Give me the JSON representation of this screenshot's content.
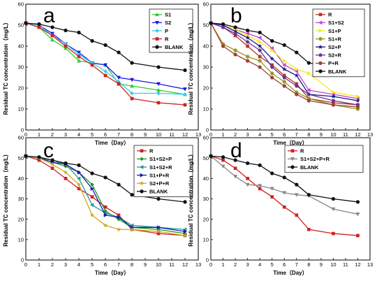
{
  "chart_data": [
    {
      "panel": "a",
      "type": "line",
      "xlabel": "Time（Day）",
      "ylabel": "Residual TC concentration（mg/L）",
      "xlim": [
        0,
        13
      ],
      "ylim": [
        0,
        60
      ],
      "xticks": [
        0,
        1,
        2,
        3,
        4,
        5,
        6,
        7,
        8,
        9,
        10,
        11,
        12,
        13
      ],
      "yticks": [
        0,
        10,
        20,
        30,
        40,
        50,
        60
      ],
      "grid": false,
      "legend_position": "top-right",
      "series": [
        {
          "name": "S1",
          "color": "#33cc33",
          "marker": "triangle-up",
          "x": [
            0,
            1,
            2,
            3,
            4,
            5,
            6,
            7,
            8,
            10,
            12
          ],
          "y": [
            51,
            49,
            43,
            39,
            33,
            32,
            31,
            22,
            21,
            19,
            17
          ]
        },
        {
          "name": "S2",
          "color": "#1a1aee",
          "marker": "triangle-down",
          "x": [
            0,
            1,
            2,
            3,
            4,
            5,
            6,
            7,
            8,
            10,
            12
          ],
          "y": [
            51,
            50,
            46,
            41,
            37,
            32,
            31,
            25,
            24,
            22,
            19.5
          ]
        },
        {
          "name": "P",
          "color": "#33ccee",
          "marker": "diamond",
          "x": [
            0,
            1,
            2,
            3,
            4,
            5,
            6,
            7,
            8,
            10,
            12
          ],
          "y": [
            51,
            50,
            45,
            41,
            36,
            32,
            28,
            23,
            17.5,
            17.5,
            17
          ]
        },
        {
          "name": "R",
          "color": "#cc2222",
          "marker": "square",
          "x": [
            0,
            1,
            2,
            3,
            4,
            5,
            6,
            7,
            8,
            10,
            12
          ],
          "y": [
            51,
            49,
            45,
            40,
            35,
            31,
            26,
            22,
            15,
            13,
            12
          ]
        },
        {
          "name": "BLANK",
          "color": "#111111",
          "marker": "circle",
          "x": [
            0,
            1,
            2,
            3,
            4,
            5,
            6,
            7,
            8,
            10,
            12
          ],
          "y": [
            51,
            50.5,
            49,
            47.5,
            46.5,
            42.5,
            40.5,
            37,
            32,
            30,
            28.5
          ]
        }
      ]
    },
    {
      "panel": "b",
      "type": "line",
      "xlabel": "Time（Day）",
      "ylabel": "Residual TC concentration（mg/L）",
      "xlim": [
        0,
        13
      ],
      "ylim": [
        0,
        60
      ],
      "xticks": [
        0,
        1,
        2,
        3,
        4,
        5,
        6,
        7,
        8,
        9,
        10,
        11,
        12,
        13
      ],
      "yticks": [
        0,
        10,
        20,
        30,
        40,
        50,
        60
      ],
      "grid": false,
      "legend_position": "top-right",
      "series": [
        {
          "name": "R",
          "color": "#bb3322",
          "marker": "square",
          "x": [
            0,
            1,
            2,
            3,
            4,
            5,
            6,
            7,
            8,
            10,
            12
          ],
          "y": [
            51,
            49,
            45,
            40,
            35,
            31,
            26,
            22,
            15,
            13,
            12
          ]
        },
        {
          "name": "S1+S2",
          "color": "#cc44cc",
          "marker": "triangle-left",
          "x": [
            0,
            1,
            2,
            3,
            4,
            5,
            6,
            7,
            8,
            10,
            12
          ],
          "y": [
            51,
            50,
            48,
            46,
            44,
            39,
            31,
            28,
            19,
            17,
            15
          ]
        },
        {
          "name": "S1+P",
          "color": "#eeee22",
          "marker": "triangle-right",
          "x": [
            0,
            1,
            2,
            3,
            4,
            5,
            6,
            7,
            8,
            10,
            12
          ],
          "y": [
            51,
            50,
            48,
            45,
            42,
            38,
            33,
            29,
            27,
            18,
            16
          ]
        },
        {
          "name": "S1+R",
          "color": "#999922",
          "marker": "circle",
          "x": [
            0,
            1,
            2,
            3,
            4,
            5,
            6,
            7,
            8,
            10,
            12
          ],
          "y": [
            51,
            41,
            38,
            35,
            33,
            27,
            23,
            18,
            15,
            12,
            10
          ]
        },
        {
          "name": "S2+P",
          "color": "#1a1a88",
          "marker": "star",
          "x": [
            0,
            1,
            2,
            3,
            4,
            5,
            6,
            7,
            8,
            10,
            12
          ],
          "y": [
            51,
            50,
            47,
            44,
            40,
            34,
            29,
            26,
            17,
            16,
            14
          ]
        },
        {
          "name": "S2+R",
          "color": "#663399",
          "marker": "pentagon",
          "x": [
            0,
            1,
            2,
            3,
            4,
            5,
            6,
            7,
            8,
            10,
            12
          ],
          "y": [
            51,
            49,
            46,
            42,
            38,
            30,
            25,
            21,
            17,
            14,
            12
          ]
        },
        {
          "name": "P+R",
          "color": "#994433",
          "marker": "circle",
          "x": [
            0,
            1,
            2,
            3,
            4,
            5,
            6,
            7,
            8,
            10,
            12
          ],
          "y": [
            51,
            40,
            36,
            33,
            30,
            25,
            21,
            17,
            14,
            12,
            11
          ]
        },
        {
          "name": "BLANK",
          "color": "#111111",
          "marker": "circle",
          "x": [
            0,
            1,
            2,
            3,
            4,
            5,
            6,
            7,
            8,
            10,
            12
          ],
          "y": [
            51,
            50.5,
            49,
            47.5,
            46.5,
            42.5,
            40.5,
            37,
            32,
            30,
            28.5
          ]
        }
      ]
    },
    {
      "panel": "c",
      "type": "line",
      "xlabel": "Time（Day）",
      "ylabel": "Residual TC concentration（mg/L）",
      "xlim": [
        0,
        13
      ],
      "ylim": [
        0,
        60
      ],
      "xticks": [
        0,
        1,
        2,
        3,
        4,
        5,
        6,
        7,
        8,
        9,
        10,
        11,
        12,
        13
      ],
      "yticks": [
        0,
        10,
        20,
        30,
        40,
        50,
        60
      ],
      "grid": false,
      "legend_position": "top-right",
      "series": [
        {
          "name": "R",
          "color": "#cc2222",
          "marker": "square",
          "x": [
            0,
            1,
            2,
            3,
            4,
            5,
            6,
            7,
            8,
            10,
            12
          ],
          "y": [
            51,
            49,
            45,
            40,
            35,
            31,
            26,
            22,
            15,
            13,
            12
          ]
        },
        {
          "name": "S1+S2+P",
          "color": "#229922",
          "marker": "diamond",
          "x": [
            0,
            1,
            2,
            3,
            4,
            5,
            6,
            7,
            8,
            10,
            12
          ],
          "y": [
            51,
            50,
            48,
            46,
            43,
            37,
            24,
            20,
            16,
            15,
            13
          ]
        },
        {
          "name": "S1+S2+R",
          "color": "#229999",
          "marker": "triangle-left",
          "x": [
            0,
            1,
            2,
            3,
            4,
            5,
            6,
            7,
            8,
            10,
            12
          ],
          "y": [
            51,
            50,
            49,
            47,
            40,
            27,
            23,
            21,
            17,
            16,
            15
          ]
        },
        {
          "name": "S1+P+R",
          "color": "#1a1aaa",
          "marker": "triangle-right",
          "x": [
            0,
            1,
            2,
            3,
            4,
            5,
            6,
            7,
            8,
            10,
            12
          ],
          "y": [
            51,
            50,
            48,
            47,
            43,
            35,
            22,
            21,
            16,
            16,
            14
          ]
        },
        {
          "name": "S2+P+R",
          "color": "#ccaa22",
          "marker": "star",
          "x": [
            0,
            1,
            2,
            3,
            4,
            5,
            6,
            7,
            8,
            10,
            12
          ],
          "y": [
            51,
            50,
            47,
            43,
            37,
            22,
            17,
            15,
            15,
            14,
            12
          ]
        },
        {
          "name": "BLANK",
          "color": "#111111",
          "marker": "circle",
          "x": [
            0,
            1,
            2,
            3,
            4,
            5,
            6,
            7,
            8,
            10,
            12
          ],
          "y": [
            51,
            50.5,
            49,
            47.5,
            46.5,
            42.5,
            40.5,
            37,
            32,
            30,
            28.5
          ]
        }
      ]
    },
    {
      "panel": "d",
      "type": "line",
      "xlabel": "Time（Day）",
      "ylabel": "Residual TC concentration（mg/L）",
      "xlim": [
        0,
        13
      ],
      "ylim": [
        0,
        60
      ],
      "xticks": [
        0,
        1,
        2,
        3,
        4,
        5,
        6,
        7,
        8,
        9,
        10,
        11,
        12,
        13
      ],
      "yticks": [
        0,
        10,
        20,
        30,
        40,
        50,
        60
      ],
      "grid": false,
      "legend_position": "top-right",
      "series": [
        {
          "name": "R",
          "color": "#cc2222",
          "marker": "square",
          "x": [
            0,
            1,
            2,
            3,
            4,
            5,
            6,
            7,
            8,
            10,
            12
          ],
          "y": [
            51,
            49,
            45,
            40,
            35,
            31,
            26,
            22,
            15,
            13,
            12
          ]
        },
        {
          "name": "S1+S2+P+R",
          "color": "#888888",
          "marker": "triangle-down",
          "x": [
            0,
            1,
            2,
            3,
            4,
            5,
            6,
            7,
            8,
            10,
            12
          ],
          "y": [
            51,
            46,
            41,
            37,
            36.5,
            35,
            33,
            32,
            31.5,
            25,
            22.5
          ]
        },
        {
          "name": "BLANK",
          "color": "#111111",
          "marker": "circle",
          "x": [
            0,
            1,
            2,
            3,
            4,
            5,
            6,
            7,
            8,
            10,
            12
          ],
          "y": [
            51,
            50.5,
            49,
            47.5,
            46.5,
            42.5,
            40.5,
            37,
            32,
            30,
            28.5
          ]
        }
      ]
    }
  ]
}
